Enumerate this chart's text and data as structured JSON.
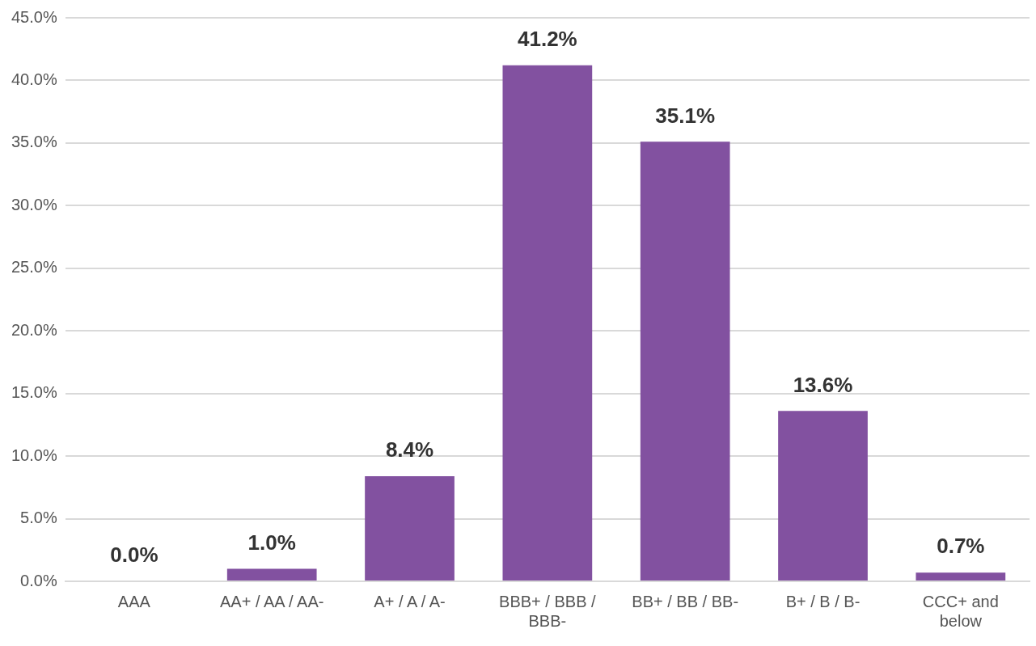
{
  "chart_data": {
    "type": "bar",
    "categories": [
      "AAA",
      "AA+ / AA / AA-",
      "A+ / A / A-",
      "BBB+ / BBB / BBB-",
      "BB+ / BB / BB-",
      "B+ / B / B-",
      "CCC+ and below"
    ],
    "values": [
      0,
      1.0,
      8.4,
      41.2,
      35.1,
      13.6,
      0.7
    ],
    "value_labels": [
      "0.0%",
      "1.0%",
      "8.4%",
      "41.2%",
      "35.1%",
      "13.6%",
      "0.7%"
    ],
    "color": "#8251a0",
    "ylim": [
      0,
      45
    ],
    "yticks": [
      {
        "value": 0,
        "label": "0.0%"
      },
      {
        "value": 5,
        "label": "5.0%"
      },
      {
        "value": 10,
        "label": "10.0%"
      },
      {
        "value": 15,
        "label": "15.0%"
      },
      {
        "value": 20,
        "label": "20.0%"
      },
      {
        "value": 25,
        "label": "25.0%"
      },
      {
        "value": 30,
        "label": "30.0%"
      },
      {
        "value": 35,
        "label": "35.0%"
      },
      {
        "value": 40,
        "label": "40.0%"
      },
      {
        "value": 45,
        "label": "45.0%"
      }
    ],
    "grid": "y"
  }
}
